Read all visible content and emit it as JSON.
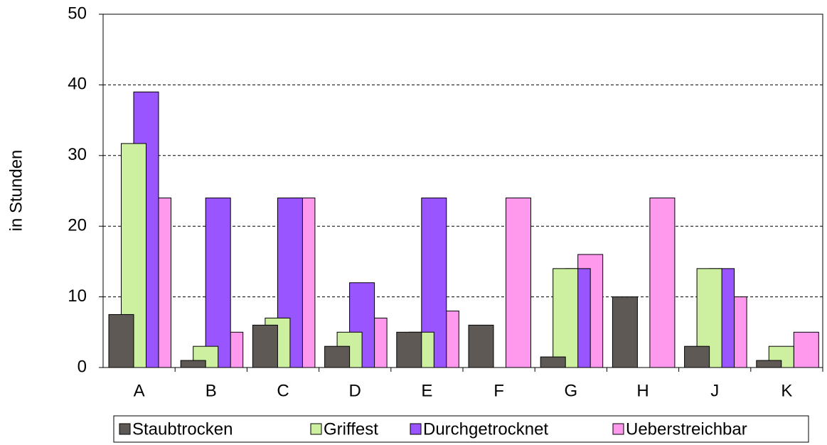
{
  "chart_data": {
    "type": "bar",
    "y_label": "in Stunden",
    "categories": [
      "A",
      "B",
      "C",
      "D",
      "E",
      "F",
      "G",
      "H",
      "J",
      "K"
    ],
    "series": [
      {
        "name": "Staubtrocken",
        "color": "#5e5954",
        "values": [
          7.5,
          1,
          6,
          3,
          5,
          6,
          1.5,
          10,
          3,
          1
        ]
      },
      {
        "name": "Griffest",
        "color": "#ccf0a0",
        "values": [
          31.7,
          3,
          7,
          5,
          5,
          0,
          14,
          0,
          14,
          3
        ]
      },
      {
        "name": "Durchgetrocknet",
        "color": "#9955ff",
        "values": [
          39,
          24,
          24,
          12,
          24,
          0,
          14,
          0,
          14,
          0
        ]
      },
      {
        "name": "Ueberstreichbar",
        "color": "#ff99ee",
        "values": [
          24,
          5,
          24,
          7,
          8,
          24,
          16,
          24,
          10,
          5
        ]
      }
    ],
    "ylim": [
      0,
      50
    ],
    "yticks": [
      0,
      10,
      20,
      30,
      40,
      50
    ],
    "grid": true,
    "legend": "bottom"
  }
}
